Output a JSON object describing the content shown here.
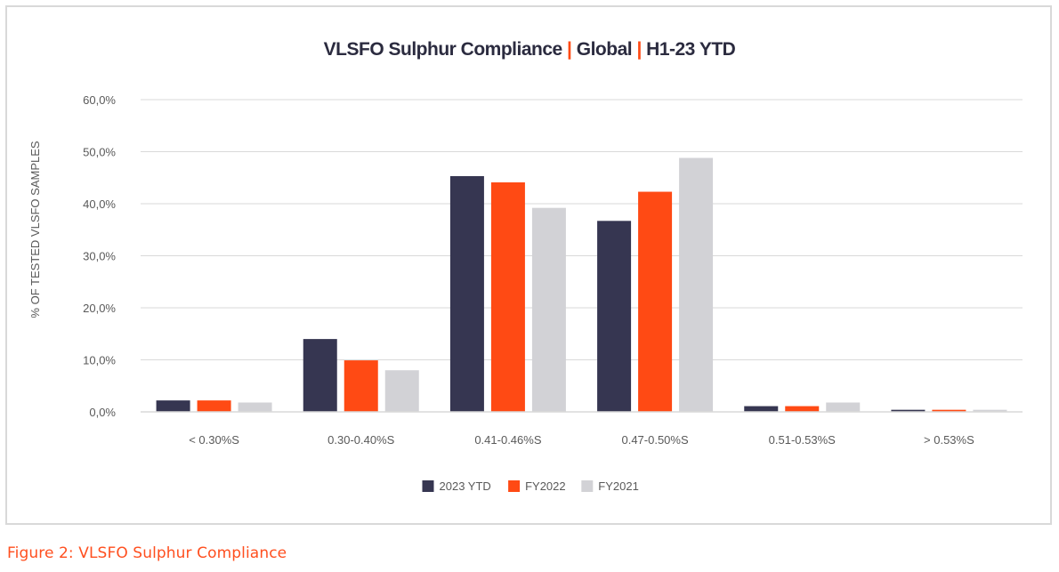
{
  "colors": {
    "series_2023": "#363651",
    "series_2022": "#ff4a14",
    "series_2021": "#d2d2d6",
    "title_separator": "#ff4a14",
    "caption": "#ff4f1f",
    "grid": "#d9d9d9",
    "axis_text": "#595959"
  },
  "chart_data": {
    "type": "bar",
    "title_parts": [
      "VLSFO Sulphur Compliance ",
      "|",
      " Global ",
      "|",
      " H1-23 YTD"
    ],
    "ylabel": "% OF TESTED VLSFO SAMPLES",
    "xlabel": "",
    "ylim": [
      0,
      60
    ],
    "yticks": [
      0,
      10,
      20,
      30,
      40,
      50,
      60
    ],
    "ytick_labels": [
      "0,0%",
      "10,0%",
      "20,0%",
      "30,0%",
      "40,0%",
      "50,0%",
      "60,0%"
    ],
    "grid": true,
    "legend_position": "bottom-center",
    "categories": [
      "< 0.30%S",
      "0.30-0.40%S",
      "0.41-0.46%S",
      "0.47-0.50%S",
      "0.51-0.53%S",
      "> 0.53%S"
    ],
    "series": [
      {
        "name": "2023 YTD",
        "color": "#363651",
        "values": [
          2.2,
          14.0,
          45.3,
          36.7,
          1.1,
          0.4
        ]
      },
      {
        "name": "FY2022",
        "color": "#ff4a14",
        "values": [
          2.2,
          9.9,
          44.1,
          42.3,
          1.1,
          0.4
        ]
      },
      {
        "name": "FY2021",
        "color": "#d2d2d6",
        "values": [
          1.8,
          8.0,
          39.2,
          48.8,
          1.8,
          0.4
        ]
      }
    ]
  },
  "caption": "Figure 2: VLSFO Sulphur Compliance"
}
